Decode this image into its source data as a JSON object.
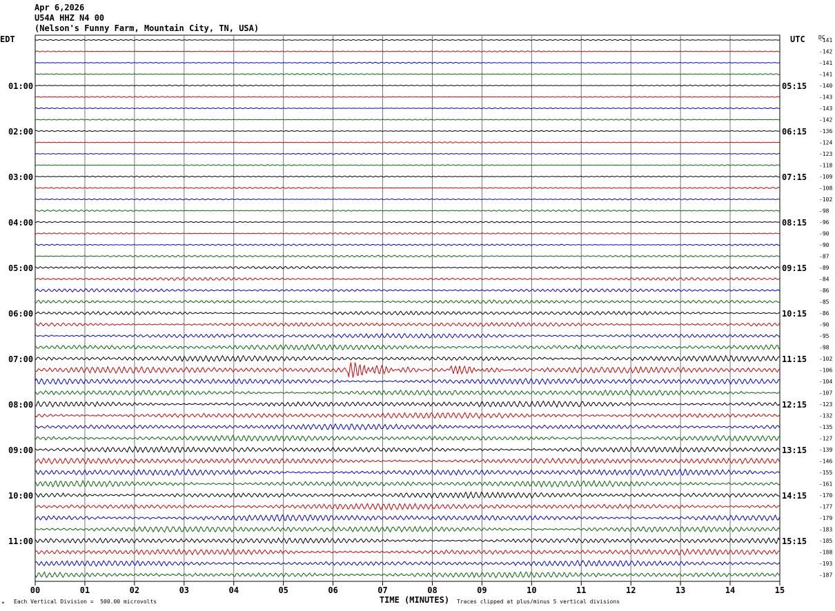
{
  "header": {
    "date": "Apr 6,2026",
    "station": "U54A HHZ N4 00",
    "location": "(Nelson's Funny Farm, Mountain City, TN, USA)"
  },
  "footer": {
    "vertical_division": "Each Vertical Division =  500.00 microvolts",
    "clipping": "Traces clipped at plus/minus 5 vertical divisions",
    "mark": "*"
  },
  "chart_data": {
    "type": "line",
    "title": "",
    "xlabel": "TIME (MINUTES)",
    "ylabel_left": "EDT",
    "ylabel_right": "UTC",
    "dc_label": "DC",
    "xlim": [
      0,
      15
    ],
    "x_ticks": [
      "00",
      "01",
      "02",
      "03",
      "04",
      "05",
      "06",
      "07",
      "08",
      "09",
      "10",
      "11",
      "12",
      "13",
      "14",
      "15"
    ],
    "left_time_labels": [
      {
        "row": 4,
        "label": "01:00"
      },
      {
        "row": 8,
        "label": "02:00"
      },
      {
        "row": 12,
        "label": "03:00"
      },
      {
        "row": 16,
        "label": "04:00"
      },
      {
        "row": 20,
        "label": "05:00"
      },
      {
        "row": 24,
        "label": "06:00"
      },
      {
        "row": 28,
        "label": "07:00"
      },
      {
        "row": 32,
        "label": "08:00"
      },
      {
        "row": 36,
        "label": "09:00"
      },
      {
        "row": 40,
        "label": "10:00"
      },
      {
        "row": 44,
        "label": "11:00"
      }
    ],
    "right_time_labels": [
      {
        "row": 4,
        "label": "05:15"
      },
      {
        "row": 8,
        "label": "06:15"
      },
      {
        "row": 12,
        "label": "07:15"
      },
      {
        "row": 16,
        "label": "08:15"
      },
      {
        "row": 20,
        "label": "09:15"
      },
      {
        "row": 24,
        "label": "10:15"
      },
      {
        "row": 28,
        "label": "11:15"
      },
      {
        "row": 32,
        "label": "12:15"
      },
      {
        "row": 36,
        "label": "13:15"
      },
      {
        "row": 40,
        "label": "14:15"
      },
      {
        "row": 44,
        "label": "15:15"
      }
    ],
    "trace_colors": [
      "#000000",
      "#cc0000",
      "#0000cc",
      "#006600"
    ],
    "dc_offsets": [
      "-141",
      "-142",
      "-141",
      "-141",
      "-140",
      "-143",
      "-143",
      "-142",
      "-136",
      "-124",
      "-123",
      "-118",
      "-109",
      "-108",
      "-102",
      "-98",
      "-96",
      "-90",
      "-90",
      "-87",
      "-89",
      "-84",
      "-86",
      "-85",
      "-86",
      "-90",
      "-95",
      "-98",
      "-102",
      "-106",
      "-104",
      "-107",
      "-123",
      "-132",
      "-135",
      "-127",
      "-139",
      "-146",
      "-155",
      "-161",
      "-170",
      "-177",
      "-179",
      "-183",
      "-185",
      "-188",
      "-193",
      "-187"
    ],
    "activity_levels": [
      0.6,
      0.6,
      0.6,
      0.6,
      0.6,
      0.6,
      0.6,
      0.6,
      0.6,
      0.6,
      0.6,
      0.6,
      0.7,
      0.7,
      0.7,
      0.8,
      0.8,
      0.9,
      1.0,
      1.1,
      1.3,
      1.5,
      1.7,
      1.9,
      2.1,
      2.3,
      2.5,
      2.8,
      3.0,
      3.4,
      3.2,
      3.0,
      3.2,
      3.0,
      3.0,
      3.0,
      3.2,
      3.2,
      3.4,
      3.3,
      3.2,
      3.2,
      3.4,
      3.3,
      3.0,
      3.0,
      3.0,
      3.0
    ],
    "events": [
      {
        "row": 29,
        "minute": 6.35,
        "amplitude_divisions": 5,
        "label": ""
      },
      {
        "row": 29,
        "minute": 8.4,
        "amplitude_divisions": 3,
        "label": ""
      }
    ]
  }
}
